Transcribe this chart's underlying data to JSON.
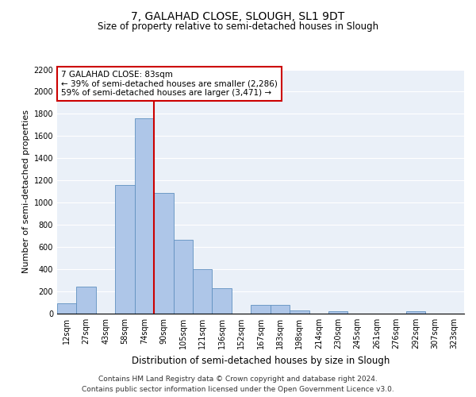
{
  "title": "7, GALAHAD CLOSE, SLOUGH, SL1 9DT",
  "subtitle": "Size of property relative to semi-detached houses in Slough",
  "xlabel": "Distribution of semi-detached houses by size in Slough",
  "ylabel": "Number of semi-detached properties",
  "bin_labels": [
    "12sqm",
    "27sqm",
    "43sqm",
    "58sqm",
    "74sqm",
    "90sqm",
    "105sqm",
    "121sqm",
    "136sqm",
    "152sqm",
    "167sqm",
    "183sqm",
    "198sqm",
    "214sqm",
    "230sqm",
    "245sqm",
    "261sqm",
    "276sqm",
    "292sqm",
    "307sqm",
    "323sqm"
  ],
  "bar_heights": [
    90,
    245,
    0,
    1160,
    1760,
    1090,
    665,
    400,
    230,
    0,
    80,
    80,
    30,
    0,
    25,
    0,
    0,
    0,
    20,
    0,
    0
  ],
  "bar_color": "#aec6e8",
  "bar_edge_color": "#6090c0",
  "property_line_bin": 4,
  "property_line_color": "#cc0000",
  "annotation_text": "7 GALAHAD CLOSE: 83sqm\n← 39% of semi-detached houses are smaller (2,286)\n59% of semi-detached houses are larger (3,471) →",
  "annotation_box_color": "#ffffff",
  "annotation_box_edge": "#cc0000",
  "ylim": [
    0,
    2200
  ],
  "yticks": [
    0,
    200,
    400,
    600,
    800,
    1000,
    1200,
    1400,
    1600,
    1800,
    2000,
    2200
  ],
  "bg_color": "#eaf0f8",
  "footer_text": "Contains HM Land Registry data © Crown copyright and database right 2024.\nContains public sector information licensed under the Open Government Licence v3.0.",
  "title_fontsize": 10,
  "subtitle_fontsize": 8.5,
  "xlabel_fontsize": 8.5,
  "ylabel_fontsize": 8,
  "tick_fontsize": 7,
  "annotation_fontsize": 7.5,
  "footer_fontsize": 6.5
}
